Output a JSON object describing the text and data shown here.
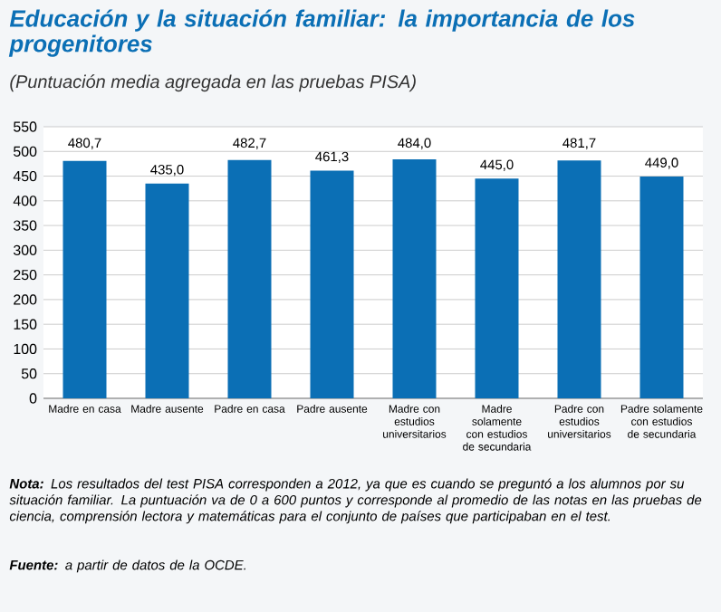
{
  "chart_data": {
    "type": "bar",
    "title": "Educación y la situación familiar: la importancia de los progenitores",
    "subtitle": "(Puntuación media agregada en las pruebas PISA)",
    "categories": [
      "Madre en casa",
      "Madre ausente",
      "Padre en casa",
      "Padre ausente",
      "Madre con estudios universitarios",
      "Madre solamente con estudios de secundaria",
      "Padre con estudios universitarios",
      "Padre solamente con estudios de secundaria"
    ],
    "values": [
      480.7,
      435.0,
      482.7,
      461.3,
      484.0,
      445.0,
      481.7,
      449.0
    ],
    "value_labels": [
      "480,7",
      "435,0",
      "482,7",
      "461,3",
      "484,0",
      "445,0",
      "481,7",
      "449,0"
    ],
    "color": "#0b6fb5",
    "ylim": [
      0,
      550
    ],
    "yticks": [
      0,
      50,
      100,
      150,
      200,
      250,
      300,
      350,
      400,
      450,
      500,
      550
    ],
    "grid": "y",
    "annotations": [
      "**Nota:** Los resultados del test PISA corresponden a 2012, ya que es cuando se preguntó a los alumnos por su situación familiar. La puntuación va de 0 a 600 puntos y corresponde al promedio de las notas en las pruebas de ciencia, comprensión lectora y matemáticas para el conjunto de países que participaban en el test.",
      "**Fuente:** a partir de datos de la OCDE."
    ]
  }
}
